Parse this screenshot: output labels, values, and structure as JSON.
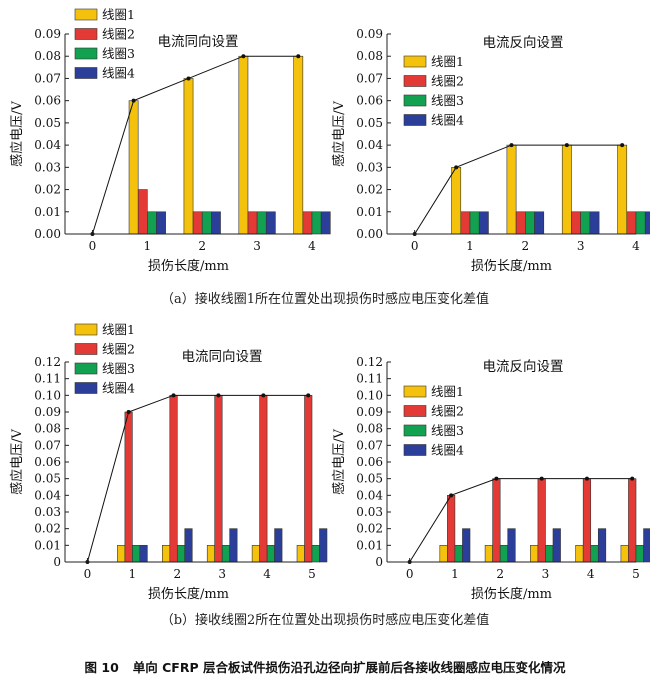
{
  "palette": {
    "series": [
      "#f4c20d",
      "#e33a35",
      "#12a150",
      "#2b3f9a"
    ],
    "axis": "#222222",
    "trend": "#111111"
  },
  "captions": {
    "a": "（a）接收线圈1所在位置处出现损伤时感应电压变化差值",
    "b": "（b）接收线圈2所在位置处出现损伤时感应电压变化差值"
  },
  "figure_caption": {
    "number": "图 10",
    "text": "单向 CFRP 层合板试件损伤沿孔边径向扩展前后各接收线圈感应电压变化情况"
  },
  "chart_data": [
    {
      "id": "a-left",
      "type": "bar",
      "title": "电流同向设置",
      "xlabel": "损伤长度/mm",
      "ylabel": "感应电压/V",
      "categories": [
        "0",
        "1",
        "2",
        "3",
        "4"
      ],
      "ylim": [
        0,
        0.09
      ],
      "yticks": [
        "0.00",
        "0.01",
        "0.02",
        "0.03",
        "0.04",
        "0.05",
        "0.06",
        "0.07",
        "0.08",
        "0.09"
      ],
      "legend_position": "top-left",
      "series": [
        {
          "name": "线圈1",
          "values": [
            0,
            0.06,
            0.07,
            0.08,
            0.08
          ]
        },
        {
          "name": "线圈2",
          "values": [
            0,
            0.02,
            0.01,
            0.01,
            0.01
          ]
        },
        {
          "name": "线圈3",
          "values": [
            0,
            0.01,
            0.01,
            0.01,
            0.01
          ]
        },
        {
          "name": "线圈4",
          "values": [
            0,
            0.01,
            0.01,
            0.01,
            0.01
          ]
        }
      ],
      "trend_series": 0
    },
    {
      "id": "a-right",
      "type": "bar",
      "title": "电流反向设置",
      "xlabel": "损伤长度/mm",
      "ylabel": "感应电压/V",
      "categories": [
        "0",
        "1",
        "2",
        "3",
        "4"
      ],
      "ylim": [
        0,
        0.09
      ],
      "yticks": [
        "0.00",
        "0.01",
        "0.02",
        "0.03",
        "0.04",
        "0.05",
        "0.06",
        "0.07",
        "0.08",
        "0.09"
      ],
      "legend_position": "top-left",
      "series": [
        {
          "name": "线圈1",
          "values": [
            0,
            0.03,
            0.04,
            0.04,
            0.04
          ]
        },
        {
          "name": "线圈2",
          "values": [
            0,
            0.01,
            0.01,
            0.01,
            0.01
          ]
        },
        {
          "name": "线圈3",
          "values": [
            0,
            0.01,
            0.01,
            0.01,
            0.01
          ]
        },
        {
          "name": "线圈4",
          "values": [
            0,
            0.01,
            0.01,
            0.01,
            0.01
          ]
        }
      ],
      "trend_series": 0
    },
    {
      "id": "b-left",
      "type": "bar",
      "title": "电流同向设置",
      "xlabel": "损伤长度/mm",
      "ylabel": "感应电压/V",
      "categories": [
        "0",
        "1",
        "2",
        "3",
        "4",
        "5"
      ],
      "ylim": [
        0,
        0.12
      ],
      "yticks": [
        "0",
        "0.01",
        "0.02",
        "0.03",
        "0.04",
        "0.05",
        "0.06",
        "0.07",
        "0.08",
        "0.09",
        "0.10",
        "0.11",
        "0.12"
      ],
      "legend_position": "top-left",
      "series": [
        {
          "name": "线圈1",
          "values": [
            0,
            0.01,
            0.01,
            0.01,
            0.01,
            0.01
          ]
        },
        {
          "name": "线圈2",
          "values": [
            0,
            0.09,
            0.1,
            0.1,
            0.1,
            0.1
          ]
        },
        {
          "name": "线圈3",
          "values": [
            0,
            0.01,
            0.01,
            0.01,
            0.01,
            0.01
          ]
        },
        {
          "name": "线圈4",
          "values": [
            0,
            0.01,
            0.02,
            0.02,
            0.02,
            0.02
          ]
        }
      ],
      "trend_series": 1
    },
    {
      "id": "b-right",
      "type": "bar",
      "title": "电流反向设置",
      "xlabel": "损伤长度/mm",
      "ylabel": "感应电压/V",
      "categories": [
        "0",
        "1",
        "2",
        "3",
        "4",
        "5"
      ],
      "ylim": [
        0,
        0.12
      ],
      "yticks": [
        "0",
        "0.01",
        "0.02",
        "0.03",
        "0.04",
        "0.05",
        "0.06",
        "0.07",
        "0.08",
        "0.09",
        "0.10",
        "0.11",
        "0.12"
      ],
      "legend_position": "top-left",
      "series": [
        {
          "name": "线圈1",
          "values": [
            0,
            0.01,
            0.01,
            0.01,
            0.01,
            0.01
          ]
        },
        {
          "name": "线圈2",
          "values": [
            0,
            0.04,
            0.05,
            0.05,
            0.05,
            0.05
          ]
        },
        {
          "name": "线圈3",
          "values": [
            0,
            0.01,
            0.01,
            0.01,
            0.01,
            0.01
          ]
        },
        {
          "name": "线圈4",
          "values": [
            0,
            0.02,
            0.02,
            0.02,
            0.02,
            0.02
          ]
        }
      ],
      "trend_series": 1
    }
  ]
}
